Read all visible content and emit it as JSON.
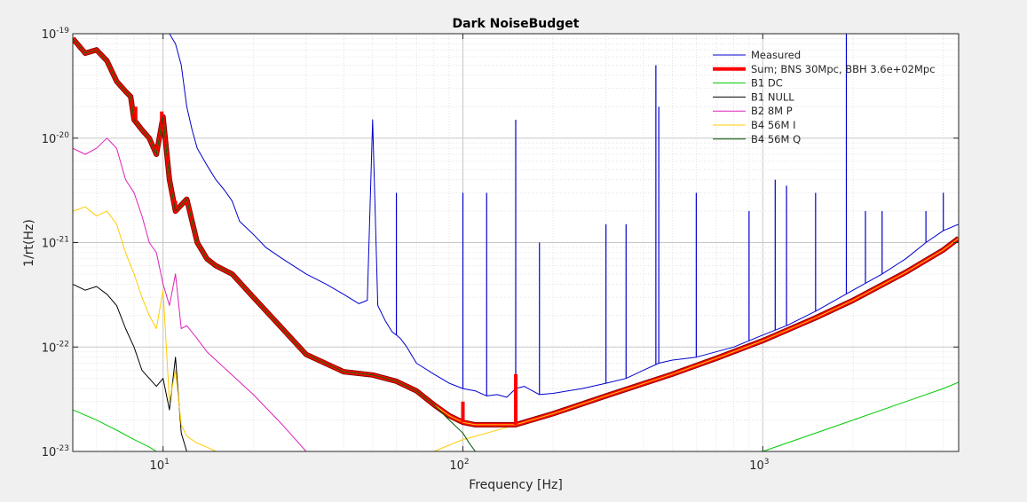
{
  "chart_data": {
    "type": "line",
    "title": "Dark NoiseBudget",
    "xlabel": "Frequency [Hz]",
    "ylabel": "1/rt(Hz)",
    "xscale": "log",
    "yscale": "log",
    "xlim": [
      5,
      4500
    ],
    "ylim": [
      1e-23,
      1e-19
    ],
    "grid": true,
    "legend_position": "top-right",
    "x_ticks": [
      {
        "value": 10,
        "base": "10",
        "exp": "1"
      },
      {
        "value": 100,
        "base": "10",
        "exp": "2"
      },
      {
        "value": 1000,
        "base": "10",
        "exp": "3"
      }
    ],
    "y_ticks": [
      {
        "value": 1e-23,
        "base": "10",
        "exp": "-23"
      },
      {
        "value": 1e-22,
        "base": "10",
        "exp": "-22"
      },
      {
        "value": 1e-21,
        "base": "10",
        "exp": "-21"
      },
      {
        "value": 1e-20,
        "base": "10",
        "exp": "-20"
      },
      {
        "value": 1e-19,
        "base": "10",
        "exp": "-19"
      }
    ],
    "series": [
      {
        "name": "Measured",
        "color": "#0000cc",
        "width": 1,
        "x": [
          10.5,
          11.0,
          11.5,
          12.0,
          12.5,
          13.0,
          14.0,
          15.0,
          16.0,
          17.0,
          18.0,
          20.0,
          22.0,
          25.0,
          30.0,
          35.0,
          40.0,
          45.0,
          48.0,
          50.0,
          52.0,
          55.0,
          58.0,
          60.0,
          62.0,
          65.0,
          70.0,
          80.0,
          90.0,
          100.0,
          110.0,
          120.0,
          130.0,
          140.0,
          150.0,
          160.0,
          180.0,
          200.0,
          250.0,
          300.0,
          350.0,
          400.0,
          450.0,
          500.0,
          600.0,
          800.0,
          1000.0,
          1200.0,
          1500.0,
          2000.0,
          2500.0,
          3000.0,
          3500.0,
          4000.0,
          4500.0
        ],
        "y": [
          1e-19,
          8e-20,
          5e-20,
          2e-20,
          1.2e-20,
          8e-21,
          5.5e-21,
          4e-21,
          3.2e-21,
          2.5e-21,
          1.6e-21,
          1.2e-21,
          9e-22,
          7e-22,
          5e-22,
          4e-22,
          3.2e-22,
          2.6e-22,
          2.8e-22,
          1.5e-20,
          2.5e-22,
          1.8e-22,
          1.4e-22,
          1.3e-22,
          1.2e-22,
          1e-22,
          7e-23,
          5.5e-23,
          4.5e-23,
          4e-23,
          3.8e-23,
          3.4e-23,
          3.5e-23,
          3.3e-23,
          4e-23,
          4.2e-23,
          3.5e-23,
          3.6e-23,
          4e-23,
          4.5e-23,
          5e-23,
          6e-23,
          7e-23,
          7.5e-23,
          8e-23,
          1e-22,
          1.3e-22,
          1.6e-22,
          2.2e-22,
          3.5e-22,
          5e-22,
          7e-22,
          1e-21,
          1.3e-21,
          1.5e-21
        ],
        "peaks": [
          [
            50,
            1.5e-20
          ],
          [
            60,
            3e-21
          ],
          [
            100,
            3e-21
          ],
          [
            120,
            3e-21
          ],
          [
            150,
            1.5e-20
          ],
          [
            180,
            1e-21
          ],
          [
            300,
            1.5e-21
          ],
          [
            350,
            1.5e-21
          ],
          [
            440,
            5e-20
          ],
          [
            450,
            2e-20
          ],
          [
            600,
            3e-21
          ],
          [
            900,
            2e-21
          ],
          [
            1100,
            4e-21
          ],
          [
            1200,
            3.5e-21
          ],
          [
            1500,
            3e-21
          ],
          [
            1900,
            1e-19
          ],
          [
            2200,
            2e-21
          ],
          [
            2500,
            2e-21
          ],
          [
            3500,
            2e-21
          ],
          [
            4000,
            3e-21
          ]
        ]
      },
      {
        "name": "Sum; BNS 30Mpc, BBH 3.6e+02Mpc",
        "color": "#ff0000",
        "width": 4,
        "x": [
          5.0,
          5.5,
          6.0,
          6.5,
          7.0,
          7.5,
          7.8,
          8.0,
          8.5,
          9.0,
          9.5,
          10.0,
          10.5,
          11.0,
          12.0,
          13.0,
          14.0,
          15.0,
          17.0,
          20.0,
          25.0,
          30.0,
          40.0,
          50.0,
          60.0,
          70.0,
          80.0,
          90.0,
          100.0,
          110.0,
          120.0,
          130.0,
          140.0,
          150.0,
          200.0,
          300.0,
          500.0,
          700.0,
          1000.0,
          1500.0,
          2000.0,
          3000.0,
          4000.0,
          4500.0
        ],
        "y": [
          9e-20,
          6.5e-20,
          7e-20,
          5.5e-20,
          3.5e-20,
          2.8e-20,
          2.5e-20,
          1.5e-20,
          1.2e-20,
          1e-20,
          7e-21,
          1.6e-20,
          4e-21,
          2e-21,
          2.6e-21,
          1e-21,
          7e-22,
          6e-22,
          5e-22,
          3e-22,
          1.5e-22,
          8.5e-23,
          5.8e-23,
          5.4e-23,
          4.7e-23,
          3.8e-23,
          2.8e-23,
          2.2e-23,
          1.9e-23,
          1.8e-23,
          1.8e-23,
          1.8e-23,
          1.8e-23,
          1.8e-23,
          2.3e-23,
          3.4e-23,
          5.5e-23,
          7.8e-23,
          1.15e-22,
          1.9e-22,
          2.8e-22,
          5.2e-22,
          8.5e-22,
          1.1e-21
        ],
        "peaks": [
          [
            8.1,
            2e-20
          ],
          [
            9.9,
            1.8e-20
          ],
          [
            11.0,
            2.5e-21
          ],
          [
            50,
            5.5e-23
          ],
          [
            100,
            3e-23
          ],
          [
            150,
            5.5e-23
          ]
        ]
      },
      {
        "name": "B1 DC",
        "color": "#00cc00",
        "width": 1,
        "x": [
          5.0,
          6.0,
          7.0,
          8.0,
          9.0,
          9.5,
          1000.0,
          2000.0,
          3000.0,
          4000.0,
          4500.0
        ],
        "y": [
          2.5e-23,
          2e-23,
          1.6e-23,
          1.3e-23,
          1.1e-23,
          1e-23,
          1e-23,
          2e-23,
          3e-23,
          4e-23,
          4.6e-23
        ]
      },
      {
        "name": "B1 NULL",
        "color": "#000000",
        "width": 1,
        "x": [
          5.0,
          5.5,
          6.0,
          6.5,
          7.0,
          7.5,
          8.0,
          8.5,
          9.0,
          9.5,
          10.0,
          10.5,
          11.0,
          11.5,
          12.0
        ],
        "y": [
          4e-22,
          3.5e-22,
          3.8e-22,
          3.2e-22,
          2.5e-22,
          1.5e-22,
          1e-22,
          6e-23,
          5e-23,
          4.2e-23,
          5e-23,
          2.5e-23,
          8e-23,
          1.5e-23,
          1e-23
        ]
      },
      {
        "name": "B2 8M P",
        "color": "#dd22bb",
        "width": 1,
        "x": [
          5.0,
          5.5,
          6.0,
          6.5,
          7.0,
          7.5,
          8.0,
          8.5,
          9.0,
          9.5,
          10.0,
          10.5,
          11.0,
          11.5,
          12.0,
          13.0,
          14.0,
          15.0,
          20.0,
          25.0,
          30.0
        ],
        "y": [
          8e-21,
          7e-21,
          8e-21,
          1e-20,
          8e-21,
          4e-21,
          3e-21,
          1.8e-21,
          1e-21,
          8e-22,
          4e-22,
          2.5e-22,
          5e-22,
          1.5e-22,
          1.6e-22,
          1.2e-22,
          9e-23,
          7.5e-23,
          3.5e-23,
          1.8e-23,
          1e-23
        ]
      },
      {
        "name": "B4 56M I",
        "color": "#ffcc00",
        "width": 1,
        "x": [
          5.0,
          5.5,
          6.0,
          6.5,
          7.0,
          7.5,
          8.0,
          8.5,
          9.0,
          9.5,
          10.0,
          10.5,
          11.0,
          11.5,
          12.0,
          13.0,
          14.0,
          15.0,
          20.0,
          80.0,
          100.0,
          120.0,
          150.0
        ],
        "y": [
          2e-21,
          2.2e-21,
          1.8e-21,
          2e-21,
          1.5e-21,
          8e-22,
          5e-22,
          3e-22,
          2e-22,
          1.5e-22,
          3.5e-22,
          3e-23,
          6e-23,
          1.8e-23,
          1.4e-23,
          1.2e-23,
          1.1e-23,
          1e-23,
          1e-23,
          1e-23,
          1.3e-23,
          1.5e-23,
          1.8e-23
        ]
      },
      {
        "name": "B4 56M Q",
        "color": "#005500",
        "width": 1,
        "x": [
          5.0,
          5.5,
          6.0,
          6.5,
          7.0,
          7.5,
          7.8,
          8.0,
          8.5,
          9.0,
          9.5,
          10.0,
          10.5,
          11.0,
          12.0,
          13.0,
          14.0,
          15.0,
          17.0,
          20.0,
          25.0,
          30.0,
          40.0,
          50.0,
          60.0,
          70.0,
          80.0,
          90.0,
          100.0,
          105.0,
          110.0
        ],
        "y": [
          9e-20,
          6.5e-20,
          7e-20,
          5.5e-20,
          3.5e-20,
          2.8e-20,
          2.5e-20,
          1.5e-20,
          1.2e-20,
          1e-20,
          7e-21,
          1.6e-20,
          4e-21,
          2e-21,
          2.6e-21,
          1e-21,
          7e-22,
          6e-22,
          5e-22,
          3e-22,
          1.5e-22,
          8.5e-23,
          5.8e-23,
          5.4e-23,
          4.7e-23,
          3.8e-23,
          2.8e-23,
          2e-23,
          1.5e-23,
          1.2e-23,
          1e-23
        ]
      }
    ]
  }
}
